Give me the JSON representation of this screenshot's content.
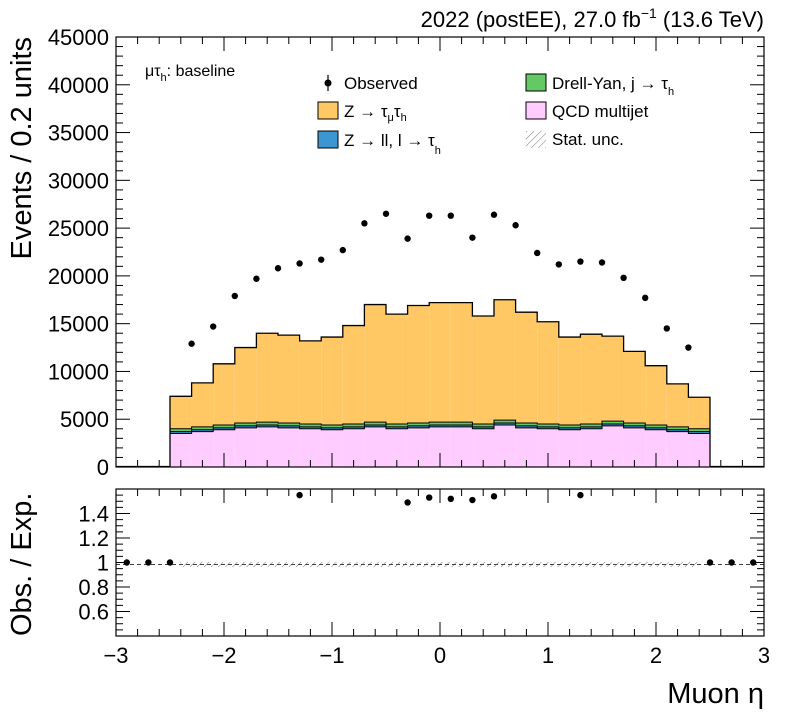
{
  "header": {
    "left": "2022 (postEE), 27.0 fb",
    "sup": "−1",
    "right": " (13.6 TeV)"
  },
  "channel": {
    "main": "μτ",
    "sub": "h",
    "rest": ": baseline"
  },
  "legend": {
    "observed": "Observed",
    "ztt": {
      "a": "Z → τ",
      "s1": "μ",
      "b": "τ",
      "s2": "h"
    },
    "zll": {
      "a": "Z → ll, l → τ",
      "s1": "h"
    },
    "dy": {
      "a": "Drell-Yan, j  → τ",
      "s1": "h"
    },
    "qcd": "QCD multijet",
    "stat": "Stat. unc."
  },
  "colors": {
    "ztt": "#ffc864",
    "zll": "#3c96d2",
    "dy": "#64c864",
    "qcd": "#ffccff",
    "observed": "#000000"
  },
  "chart_data": [
    {
      "type": "bar",
      "stacked": true,
      "xlim": [
        -3,
        3
      ],
      "ylim": [
        0,
        45000
      ],
      "ylabel": "Events / 0.2 units",
      "xlabel": "",
      "yticks": [
        "0",
        "5000",
        "10000",
        "15000",
        "20000",
        "25000",
        "30000",
        "35000",
        "40000",
        "45000"
      ],
      "bin_edges": [
        -2.5,
        -2.3,
        -2.1,
        -1.9,
        -1.7,
        -1.5,
        -1.3,
        -1.1,
        -0.9,
        -0.7,
        -0.5,
        -0.3,
        -0.1,
        0.1,
        0.3,
        0.5,
        0.7,
        0.9,
        1.1,
        1.3,
        1.5,
        1.7,
        1.9,
        2.1,
        2.3,
        2.5
      ],
      "series": [
        {
          "name": "QCD multijet",
          "values": [
            3500,
            3700,
            3900,
            4100,
            4200,
            4100,
            4000,
            3900,
            4000,
            4200,
            4000,
            4100,
            4200,
            4200,
            4000,
            4400,
            4100,
            4000,
            3900,
            4000,
            4300,
            4100,
            3900,
            3700,
            3500
          ]
        },
        {
          "name": "Z → ll, l → τh",
          "values": [
            200,
            200,
            200,
            200,
            200,
            200,
            200,
            200,
            200,
            200,
            200,
            200,
            200,
            200,
            200,
            200,
            200,
            200,
            200,
            200,
            200,
            200,
            200,
            200,
            200
          ]
        },
        {
          "name": "Drell-Yan, j → τh",
          "values": [
            300,
            300,
            300,
            300,
            300,
            300,
            300,
            300,
            300,
            300,
            300,
            300,
            300,
            300,
            300,
            300,
            300,
            300,
            300,
            300,
            300,
            300,
            300,
            300,
            300
          ]
        },
        {
          "name": "Z → τμτh",
          "values": [
            3400,
            4600,
            6400,
            7900,
            9300,
            9200,
            8700,
            9200,
            10300,
            12300,
            11500,
            12300,
            12500,
            12500,
            11300,
            12600,
            11600,
            10700,
            9200,
            9400,
            8900,
            7500,
            6200,
            4500,
            3300
          ]
        }
      ],
      "observed": {
        "name": "Observed",
        "x": [
          -2.3,
          -2.1,
          -1.9,
          -1.7,
          -1.5,
          -1.3,
          -1.1,
          -0.9,
          -0.7,
          -0.5,
          -0.3,
          -0.1,
          0.1,
          0.3,
          0.5,
          0.7,
          0.9,
          1.1,
          1.3,
          1.5,
          1.7,
          1.9,
          2.1,
          2.3
        ],
        "y": [
          12900,
          14700,
          17900,
          19700,
          20800,
          21300,
          21700,
          22700,
          25500,
          26500,
          23900,
          26300,
          26300,
          24000,
          26400,
          25300,
          22400,
          21200,
          21500,
          21400,
          19800,
          17700,
          14500,
          12500
        ]
      }
    },
    {
      "type": "scatter",
      "xlim": [
        -3,
        3
      ],
      "ylim": [
        0.4,
        1.6
      ],
      "xlabel": "Muon η",
      "ylabel": "Obs. / Exp.",
      "yticks": [
        "0.6",
        "0.8",
        "1",
        "1.2",
        "1.4"
      ],
      "xticks": [
        "−3",
        "−2",
        "−1",
        "0",
        "1",
        "2",
        "3"
      ],
      "x": [
        -2.9,
        -2.7,
        -2.5,
        -1.3,
        -0.3,
        -0.1,
        0.1,
        0.3,
        0.5,
        1.3,
        2.5,
        2.7,
        2.9
      ],
      "y": [
        1.0,
        1.0,
        1.0,
        1.55,
        1.49,
        1.53,
        1.52,
        1.51,
        1.54,
        1.55,
        1.0,
        1.0,
        1.0
      ]
    }
  ]
}
